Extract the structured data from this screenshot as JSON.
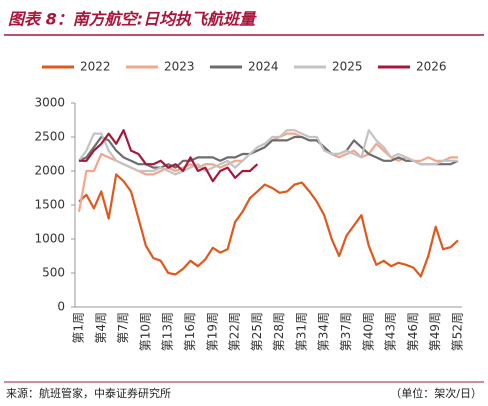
{
  "chart_data": {
    "type": "line",
    "title": "图表 8：南方航空:日均执飞航班量",
    "source": "来源：航班管家，中泰证券研究所",
    "unit_note": "（单位：架次/日）",
    "categories": [
      "第1周",
      null,
      null,
      "第4周",
      null,
      null,
      "第7周",
      null,
      null,
      "第10周",
      null,
      null,
      "第13周",
      null,
      null,
      "第16周",
      null,
      null,
      "第19周",
      null,
      null,
      "第22周",
      null,
      null,
      "第25周",
      null,
      null,
      "第28周",
      null,
      null,
      "第31周",
      null,
      null,
      "第34周",
      null,
      null,
      "第37周",
      null,
      null,
      "第40周",
      null,
      null,
      "第43周",
      null,
      null,
      "第46周",
      null,
      null,
      "第49周",
      null,
      null,
      "第52周"
    ],
    "ylim": [
      0,
      3000
    ],
    "yticks": [
      0,
      500,
      1000,
      1500,
      2000,
      2500,
      3000
    ],
    "grid": false,
    "legend": "top",
    "series": [
      {
        "name": "2022",
        "color": "#e0581c",
        "values": [
          1550,
          1650,
          1450,
          1700,
          1300,
          1950,
          1850,
          1700,
          1300,
          900,
          720,
          680,
          500,
          480,
          560,
          680,
          600,
          700,
          870,
          800,
          850,
          1250,
          1400,
          1600,
          1700,
          1800,
          1750,
          1680,
          1700,
          1800,
          1830,
          1700,
          1550,
          1350,
          1000,
          750,
          1050,
          1200,
          1350,
          900,
          620,
          680,
          600,
          650,
          620,
          580,
          450,
          750,
          1180,
          850,
          880,
          980
        ]
      },
      {
        "name": "2023",
        "color": "#f4a58a",
        "values": [
          1400,
          2000,
          2000,
          2250,
          2200,
          2150,
          2100,
          2050,
          2000,
          1950,
          1950,
          2000,
          2050,
          2000,
          2050,
          2100,
          2050,
          2100,
          2100,
          2050,
          2100,
          2150,
          2150,
          2250,
          2300,
          2350,
          2450,
          2500,
          2550,
          2550,
          2500,
          2450,
          2450,
          2350,
          2250,
          2200,
          2250,
          2300,
          2200,
          2250,
          2400,
          2300,
          2200,
          2150,
          2200,
          2150,
          2150,
          2200,
          2150,
          2150,
          2200,
          2200
        ]
      },
      {
        "name": "2024",
        "color": "#6d6d6d",
        "values": [
          2150,
          2200,
          2350,
          2500,
          2450,
          2300,
          2200,
          2150,
          2100,
          2100,
          2050,
          2050,
          2100,
          2050,
          2150,
          2150,
          2200,
          2200,
          2200,
          2150,
          2200,
          2200,
          2250,
          2250,
          2300,
          2350,
          2450,
          2450,
          2450,
          2500,
          2500,
          2450,
          2450,
          2350,
          2250,
          2250,
          2300,
          2450,
          2350,
          2250,
          2200,
          2150,
          2150,
          2200,
          2150,
          2150,
          2100,
          2100,
          2100,
          2100,
          2100,
          2150
        ]
      },
      {
        "name": "2025",
        "color": "#c3c3c3",
        "values": [
          2150,
          2300,
          2550,
          2550,
          2300,
          2150,
          2100,
          2050,
          2000,
          2000,
          2000,
          2050,
          2000,
          1950,
          2000,
          2050,
          2100,
          2000,
          2050,
          2100,
          2150,
          2050,
          2150,
          2250,
          2350,
          2400,
          2500,
          2500,
          2600,
          2600,
          2550,
          2500,
          2500,
          2300,
          2250,
          2250,
          2300,
          2250,
          2200,
          2600,
          2450,
          2350,
          2200,
          2250,
          2200,
          2150,
          2100,
          2100,
          2100,
          2150,
          2150,
          2150
        ]
      },
      {
        "name": "2026",
        "color": "#a8173a",
        "values": [
          2150,
          2150,
          2300,
          2400,
          2550,
          2400,
          2600,
          2300,
          2250,
          2100,
          2100,
          2150,
          2050,
          2100,
          2000,
          2200,
          2000,
          2050,
          1850,
          2000,
          2050,
          1900,
          2000,
          2000,
          2100,
          null,
          null,
          null,
          null,
          null,
          null,
          null,
          null,
          null,
          null,
          null,
          null,
          null,
          null,
          null,
          null,
          null,
          null,
          null,
          null,
          null,
          null,
          null,
          null,
          null,
          null,
          null
        ]
      }
    ]
  }
}
